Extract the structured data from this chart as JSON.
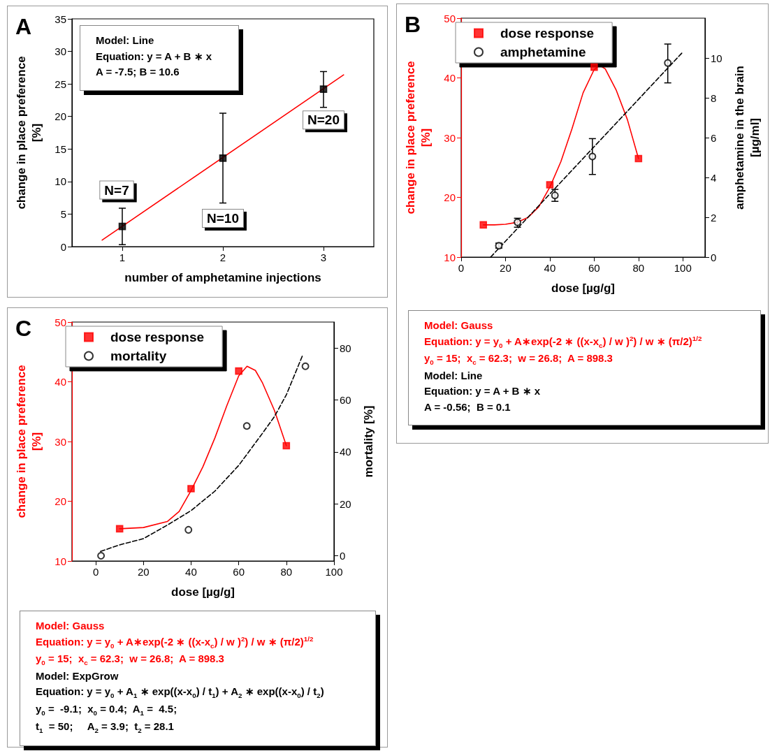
{
  "chart_data": [
    {
      "type": "scatter",
      "title": "A",
      "xlabel": "number of amphetamine injections",
      "ylabel": "change in place preference\n[%]",
      "xlim": [
        0.5,
        3.5
      ],
      "xticks": [
        1,
        2,
        3
      ],
      "ylim": [
        0,
        35
      ],
      "yticks": [
        0,
        5,
        10,
        15,
        20,
        25,
        30,
        35
      ],
      "grid": false,
      "legend": false,
      "series": [
        {
          "color": "#000000",
          "marker": "square",
          "x": [
            1,
            2,
            3
          ],
          "values": [
            3.1,
            13.6,
            24.2
          ],
          "errors": [
            [
              0.3,
              5.9
            ],
            [
              6.7,
              20.5
            ],
            [
              21.4,
              26.9
            ]
          ]
        },
        {
          "type": "line",
          "color": "#ff0000",
          "marker": "none",
          "line_style": "solid",
          "x": [
            0.8,
            3.2
          ],
          "values": [
            1.0,
            26.4
          ]
        }
      ],
      "annotations": [
        "Model: Line\nEquation: y = A + B ∗ x\nA = -7.5; B = 10.6",
        {
          "text": "N=7",
          "x": 1,
          "y": 5.9
        },
        {
          "text": "N=10",
          "x": 2,
          "y": 6.7
        },
        {
          "text": "N=20",
          "x": 3,
          "y": 21.4
        }
      ]
    },
    {
      "type": "scatter",
      "title": "B",
      "xlabel": "dose [µg/g]",
      "ylabel": "change in place preference\n[%]",
      "y2label": "amphetamine in the brain\n[µg/ml]",
      "xlim": [
        0,
        110
      ],
      "xticks": [
        0,
        20,
        40,
        60,
        80,
        100
      ],
      "ylim": [
        10,
        50
      ],
      "yticks": [
        10,
        20,
        30,
        40,
        50
      ],
      "y2lim": [
        0,
        12
      ],
      "y2ticks": [
        0,
        2,
        4,
        6,
        8,
        10
      ],
      "grid": false,
      "legend": "top left",
      "series": [
        {
          "name": "dose response",
          "color": "#ff0000",
          "marker": "square",
          "x": [
            10,
            40,
            60,
            80
          ],
          "values": [
            15.4,
            22.1,
            41.8,
            26.5
          ]
        },
        {
          "name": "amphetamine",
          "axis": "y2",
          "color": "#000000",
          "marker": "circle",
          "x": [
            17,
            25.4,
            42.3,
            59.2,
            93.2
          ],
          "values": [
            0.57,
            1.75,
            3.1,
            5.05,
            9.75
          ],
          "errors": [
            [
              0.45,
              0.7
            ],
            [
              1.5,
              1.95
            ],
            [
              2.8,
              3.4
            ],
            [
              4.15,
              5.95
            ],
            [
              8.75,
              10.7
            ]
          ]
        },
        {
          "type": "line",
          "color": "#ff0000",
          "marker": "none",
          "line_style": "solid",
          "x": [
            10,
            15,
            20,
            25,
            30,
            35,
            40,
            45,
            50,
            55,
            60,
            62.5,
            65,
            70,
            75,
            80
          ],
          "values": [
            15.4,
            15.4,
            15.5,
            15.8,
            16.6,
            18.4,
            21.7,
            26,
            31.5,
            37.5,
            41.4,
            42.1,
            41.5,
            37.9,
            33,
            26.5
          ]
        },
        {
          "type": "line",
          "axis": "y2",
          "color": "#000000",
          "marker": "none",
          "line_style": "dashed",
          "x": [
            13.3,
            100
          ],
          "values": [
            0,
            10.3
          ]
        }
      ],
      "annotations": [
        "Model: Gauss\nEquation: y = y$_{0}$ + A∗exp(-2 ∗ ((x-x$_{c}$) / w )$^{2}$) / w ∗ (π/2)$^{1/2}$\ny$_{0}$ = 15;  x$_{c}$ = 62.3;  w = 26.8;  A = 898.3",
        "Model: Line\nEquation: y = A + B ∗ x\nA = -0.56;  B = 0.1"
      ]
    },
    {
      "type": "scatter",
      "title": "C",
      "xlabel": "dose [µg/g]",
      "ylabel": "change in place preference\n[%]",
      "y2label": "mortality [%]",
      "xlim": [
        -10,
        100
      ],
      "xticks": [
        0,
        20,
        40,
        60,
        80,
        100
      ],
      "ylim": [
        10,
        50
      ],
      "yticks": [
        10,
        20,
        30,
        40,
        50
      ],
      "y2lim": [
        -2,
        90
      ],
      "y2ticks": [
        0,
        20,
        40,
        60,
        80
      ],
      "grid": false,
      "legend": "top left",
      "series": [
        {
          "name": "dose response",
          "color": "#ff0000",
          "marker": "square",
          "x": [
            10,
            40,
            60,
            80
          ],
          "values": [
            15.4,
            22.1,
            41.8,
            29.3
          ]
        },
        {
          "name": "mortality",
          "axis": "y2",
          "color": "#000000",
          "marker": "circle",
          "x": [
            2.2,
            38.9,
            63.4,
            88
          ],
          "values": [
            0,
            10,
            50,
            73
          ]
        },
        {
          "type": "line",
          "color": "#ff0000",
          "marker": "none",
          "line_style": "solid",
          "x": [
            10,
            20,
            30,
            35,
            40,
            45,
            50,
            55,
            60,
            63.5,
            67,
            70,
            75,
            80
          ],
          "values": [
            15.4,
            15.6,
            16.6,
            18.3,
            21.8,
            25.8,
            30.6,
            36,
            41,
            42.6,
            41.9,
            39.8,
            35.2,
            29.3
          ]
        },
        {
          "type": "line",
          "axis": "y2",
          "color": "#000000",
          "marker": "none",
          "line_style": "dashed",
          "x": [
            2,
            10,
            20,
            30,
            40,
            50,
            60,
            70,
            75,
            80,
            87
          ],
          "values": [
            1.7,
            4.2,
            6.6,
            11.8,
            17.4,
            24.9,
            34.8,
            47.2,
            53.6,
            62,
            77.6
          ]
        }
      ],
      "annotations": [
        "Model: Gauss\nEquation: y = y$_{0}$ + A∗exp(-2 ∗ ((x-x$_{c}$) / w )$^{2}$) / w ∗ (π/2)$^{1/2}$\ny$_{0}$ = 15;  x$_{c}$ = 62.3;  w = 26.8;  A = 898.3",
        "Model: ExpGrow\nEquation: y = y$_{0}$ + A$_{1}$ ∗ exp((x-x$_{0}$) / t$_{1}$) + A$_{2}$ ∗ exp((x-x$_{0}$) / t$_{2}$)\ny$_{0}$ =  -9.1;  x$_{0}$ = 0.4;  A$_{1}$ =  4.5;\nt$_{1}$  = 50;     A$_{2}$ = 3.9;  t$_{2}$ = 28.1"
      ]
    }
  ]
}
